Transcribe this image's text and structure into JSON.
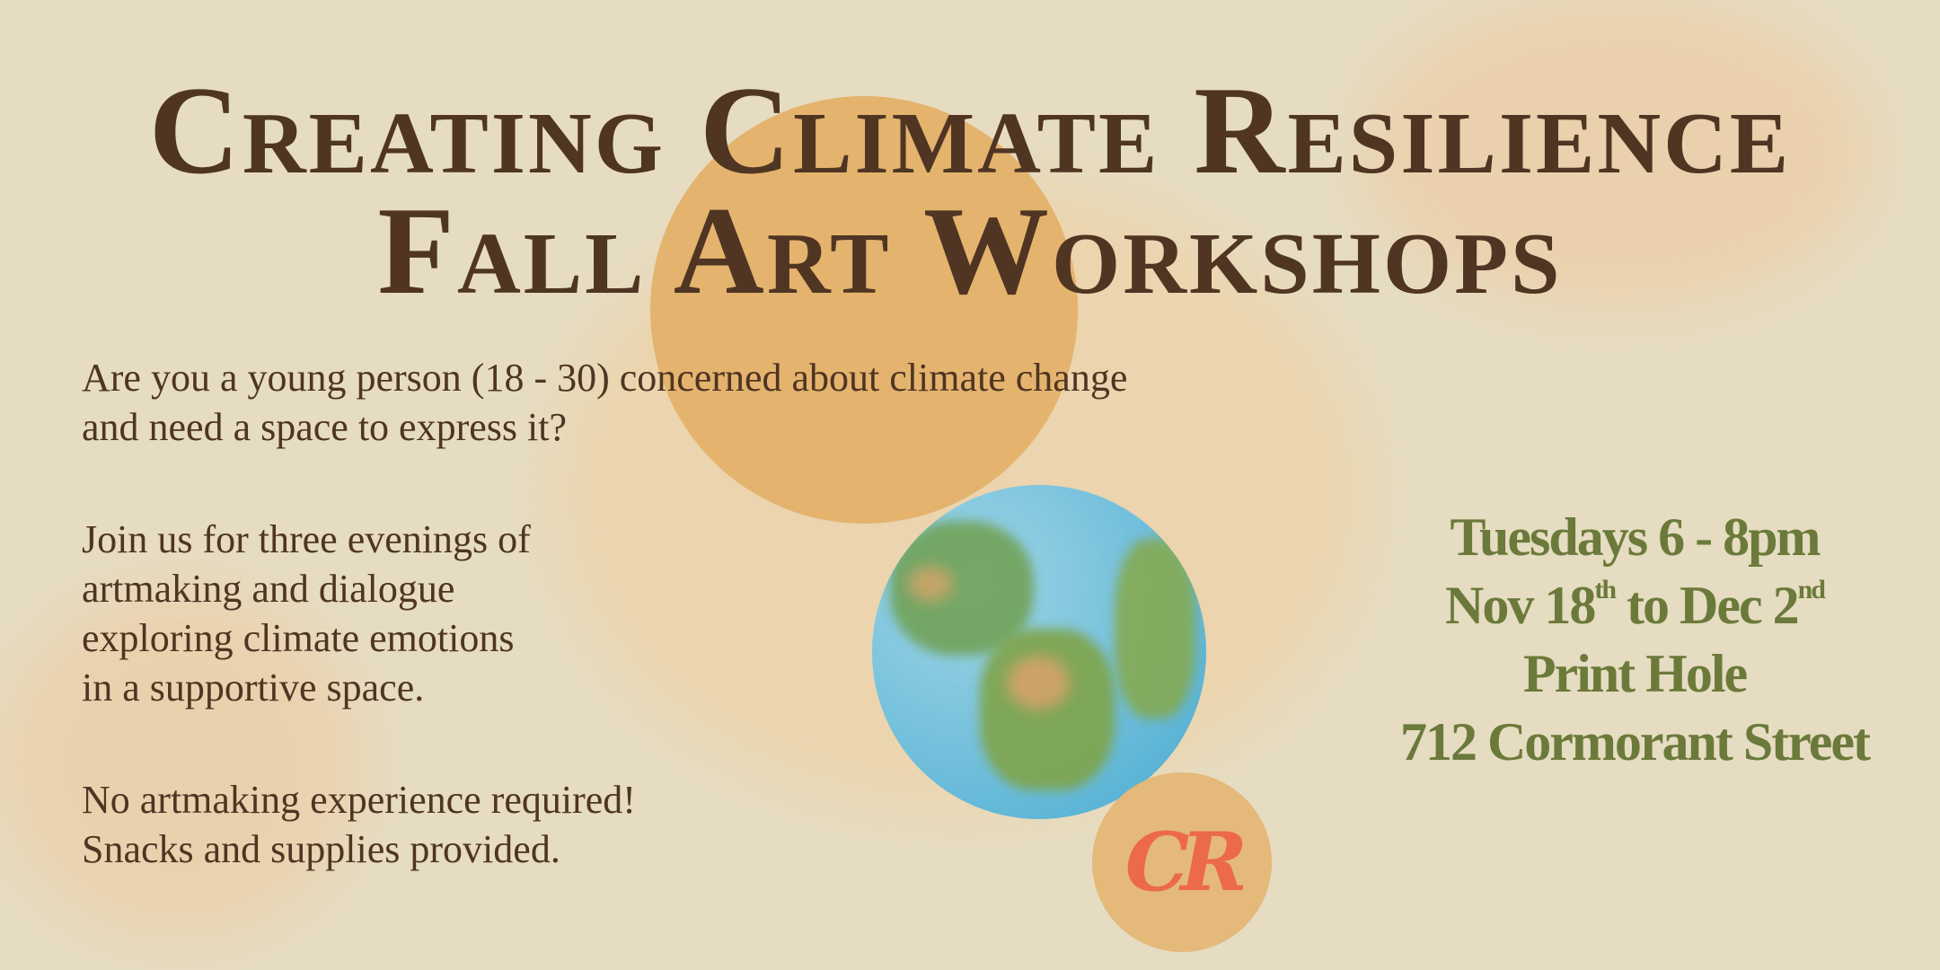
{
  "title": {
    "line1": "Creating Climate Resilience",
    "line2": "Fall Art Workshops"
  },
  "intro": {
    "p1": [
      "Are you a young person (18 - 30) concerned about climate change",
      "and need a space to express it?"
    ],
    "p2": [
      "Join us for three evenings of",
      "artmaking and dialogue",
      "exploring climate emotions",
      "in a supportive space."
    ],
    "p3": [
      "No artmaking experience required!",
      "Snacks and supplies provided."
    ]
  },
  "details": {
    "schedule": "Tuesdays 6 - 8pm",
    "dates": {
      "start": "Nov 18",
      "start_suffix": "th",
      "connector": " to ",
      "end": "Dec 2",
      "end_suffix": "nd"
    },
    "venue": "Print Hole",
    "address": "712 Cormorant Street"
  },
  "colors": {
    "background": "#e6dcc1",
    "title": "#4f3522",
    "details": "#6b7a3a",
    "sun": "#e4b36e",
    "logo": "#ec6a4a"
  },
  "logo": {
    "text": "CR"
  }
}
